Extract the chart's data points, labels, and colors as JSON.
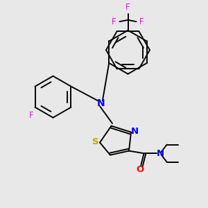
{
  "background_color": "#e8e8e8",
  "bond_color": "#000000",
  "atom_colors": {
    "N": "#0000ff",
    "O": "#ff0000",
    "S": "#c8a000",
    "F": "#ff00ff",
    "C": "#000000"
  },
  "figsize": [
    3.0,
    3.0
  ],
  "dpi": 100,
  "lw": 1.4
}
